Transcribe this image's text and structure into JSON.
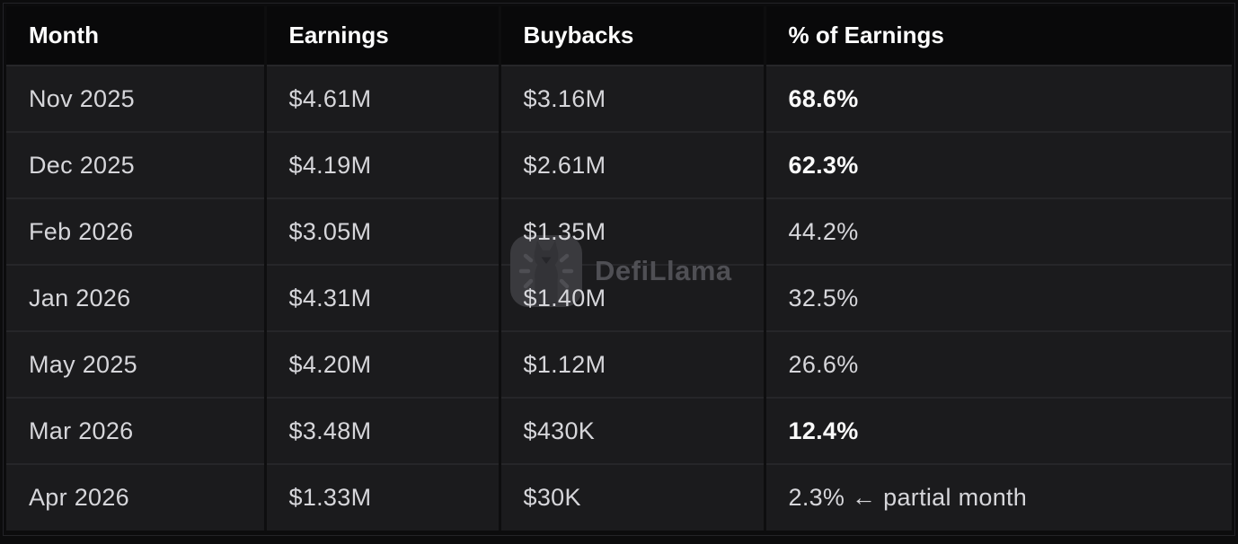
{
  "table": {
    "columns": [
      "Month",
      "Earnings",
      "Buybacks",
      "% of Earnings"
    ],
    "rows": [
      {
        "month": "Nov 2025",
        "earnings": "$4.61M",
        "buybacks": "$3.16M",
        "pct": "68.6%",
        "pct_note": "",
        "pct_bold": true
      },
      {
        "month": "Dec 2025",
        "earnings": "$4.19M",
        "buybacks": "$2.61M",
        "pct": "62.3%",
        "pct_note": "",
        "pct_bold": true
      },
      {
        "month": "Feb 2026",
        "earnings": "$3.05M",
        "buybacks": "$1.35M",
        "pct": "44.2%",
        "pct_note": "",
        "pct_bold": false
      },
      {
        "month": "Jan 2026",
        "earnings": "$4.31M",
        "buybacks": "$1.40M",
        "pct": "32.5%",
        "pct_note": "",
        "pct_bold": false
      },
      {
        "month": "May 2025",
        "earnings": "$4.20M",
        "buybacks": "$1.12M",
        "pct": "26.6%",
        "pct_note": "",
        "pct_bold": false
      },
      {
        "month": "Mar 2026",
        "earnings": "$3.48M",
        "buybacks": "$430K",
        "pct": "12.4%",
        "pct_note": "",
        "pct_bold": true
      },
      {
        "month": "Apr 2026",
        "earnings": "$1.33M",
        "buybacks": "$30K",
        "pct": "2.3%",
        "pct_note": "← partial month",
        "pct_bold": false
      }
    ]
  },
  "watermark": {
    "text": "DefiLlama",
    "icon": "defillama-llama-icon"
  },
  "colors": {
    "page_background": "#0c0c0d",
    "header_background": "#09090a",
    "row_background": "#1b1b1d",
    "row_separator": "#262629",
    "column_separator": "#0e0e0f",
    "header_text": "#ffffff",
    "cell_text": "#d6d6da",
    "bold_text": "#fafafa",
    "watermark_gray": "#4f4f54"
  },
  "chart_data": {
    "type": "table",
    "title": "",
    "columns": [
      "Month",
      "Earnings",
      "Buybacks",
      "% of Earnings"
    ],
    "rows": [
      [
        "Nov 2025",
        "$4.61M",
        "$3.16M",
        "68.6%"
      ],
      [
        "Dec 2025",
        "$4.19M",
        "$2.61M",
        "62.3%"
      ],
      [
        "Feb 2026",
        "$3.05M",
        "$1.35M",
        "44.2%"
      ],
      [
        "Jan 2026",
        "$4.31M",
        "$1.40M",
        "32.5%"
      ],
      [
        "May 2025",
        "$4.20M",
        "$1.12M",
        "26.6%"
      ],
      [
        "Mar 2026",
        "$3.48M",
        "$430K",
        "12.4%"
      ],
      [
        "Apr 2026",
        "$1.33M",
        "$30K",
        "2.3% ← partial month"
      ]
    ],
    "bold_percent_rows": [
      "Nov 2025",
      "Dec 2025",
      "Mar 2026"
    ],
    "numeric": {
      "months": [
        "Nov 2025",
        "Dec 2025",
        "Feb 2026",
        "Jan 2026",
        "May 2025",
        "Mar 2026",
        "Apr 2026"
      ],
      "earnings_musd": [
        4.61,
        4.19,
        3.05,
        4.31,
        4.2,
        3.48,
        1.33
      ],
      "buybacks_musd": [
        3.16,
        2.61,
        1.35,
        1.4,
        1.12,
        0.43,
        0.03
      ],
      "pct_of_earnings": [
        68.6,
        62.3,
        44.2,
        32.5,
        26.6,
        12.4,
        2.3
      ]
    },
    "annotations": [
      "Apr 2026 row flagged as partial month"
    ],
    "source_watermark": "DefiLlama"
  }
}
